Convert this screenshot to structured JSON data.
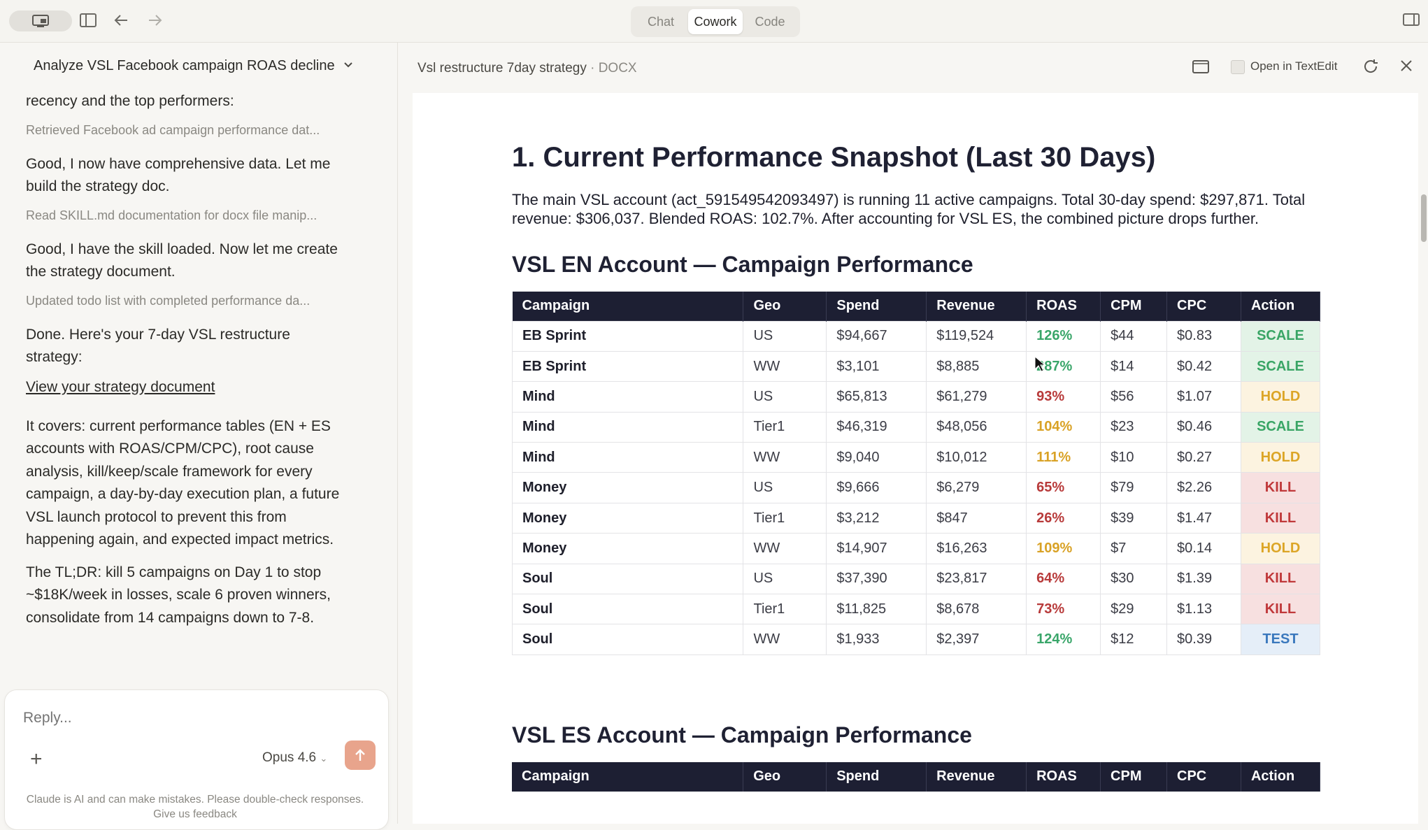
{
  "topbar": {
    "modes": [
      "Chat",
      "Cowork",
      "Code"
    ],
    "active_mode": "Cowork"
  },
  "conversation": {
    "title": "Analyze VSL Facebook campaign ROAS decline",
    "items": [
      {
        "kind": "msg",
        "text": "recency and the top performers:"
      },
      {
        "kind": "tool",
        "text": "Retrieved Facebook ad campaign performance dat..."
      },
      {
        "kind": "msg",
        "text": "Good, I now have comprehensive data. Let me build the strategy doc."
      },
      {
        "kind": "tool",
        "text": "Read SKILL.md documentation for docx file manip..."
      },
      {
        "kind": "msg",
        "text": "Good, I have the skill loaded. Now let me create the strategy document."
      },
      {
        "kind": "tool",
        "text": "Updated todo list with completed performance da..."
      },
      {
        "kind": "msg",
        "text": "Done. Here's your 7-day VSL restructure strategy:"
      },
      {
        "kind": "link",
        "text": "View your strategy document"
      },
      {
        "kind": "msg",
        "text": "It covers: current performance tables (EN + ES accounts with ROAS/CPM/CPC), root cause analysis, kill/keep/scale framework for every campaign, a day-by-day execution plan, a future VSL launch protocol to prevent this from happening again, and expected impact metrics."
      },
      {
        "kind": "msg",
        "text": "The TL;DR: kill 5 campaigns on Day 1 to stop ~$18K/week in losses, scale 6 proven winners, consolidate from 14 campaigns down to 7-8."
      }
    ],
    "reply_placeholder": "Reply...",
    "model": "Opus 4.6",
    "disclaimer_line1": "Claude is AI and can make mistakes. Please double-check responses.",
    "disclaimer_line2": "Give us feedback"
  },
  "document": {
    "filename": "Vsl restructure 7day strategy",
    "ext": "· DOCX",
    "open_in": "Open in TextEdit",
    "heading": "1. Current Performance Snapshot (Last 30 Days)",
    "intro": "The main VSL account (act_591549542093497) is running 11 active campaigns. Total 30-day spend: $297,871. Total revenue: $306,037. Blended ROAS: 102.7%. After accounting for VSL ES, the combined picture drops further.",
    "section_en": "VSL EN Account — Campaign Performance",
    "section_es": "VSL ES Account — Campaign Performance",
    "columns": [
      "Campaign",
      "Geo",
      "Spend",
      "Revenue",
      "ROAS",
      "CPM",
      "CPC",
      "Action"
    ],
    "rows": [
      {
        "campaign": "EB Sprint",
        "geo": "US",
        "spend": "$94,667",
        "revenue": "$119,524",
        "roas": "126%",
        "roas_color": "green",
        "cpm": "$44",
        "cpc": "$0.83",
        "action": "SCALE"
      },
      {
        "campaign": "EB Sprint",
        "geo": "WW",
        "spend": "$3,101",
        "revenue": "$8,885",
        "roas": "287%",
        "roas_color": "green",
        "cpm": "$14",
        "cpc": "$0.42",
        "action": "SCALE"
      },
      {
        "campaign": "Mind",
        "geo": "US",
        "spend": "$65,813",
        "revenue": "$61,279",
        "roas": "93%",
        "roas_color": "red",
        "cpm": "$56",
        "cpc": "$1.07",
        "action": "HOLD"
      },
      {
        "campaign": "Mind",
        "geo": "Tier1",
        "spend": "$46,319",
        "revenue": "$48,056",
        "roas": "104%",
        "roas_color": "amber",
        "cpm": "$23",
        "cpc": "$0.46",
        "action": "SCALE"
      },
      {
        "campaign": "Mind",
        "geo": "WW",
        "spend": "$9,040",
        "revenue": "$10,012",
        "roas": "111%",
        "roas_color": "amber",
        "cpm": "$10",
        "cpc": "$0.27",
        "action": "HOLD"
      },
      {
        "campaign": "Money",
        "geo": "US",
        "spend": "$9,666",
        "revenue": "$6,279",
        "roas": "65%",
        "roas_color": "red",
        "cpm": "$79",
        "cpc": "$2.26",
        "action": "KILL"
      },
      {
        "campaign": "Money",
        "geo": "Tier1",
        "spend": "$3,212",
        "revenue": "$847",
        "roas": "26%",
        "roas_color": "red",
        "cpm": "$39",
        "cpc": "$1.47",
        "action": "KILL"
      },
      {
        "campaign": "Money",
        "geo": "WW",
        "spend": "$14,907",
        "revenue": "$16,263",
        "roas": "109%",
        "roas_color": "amber",
        "cpm": "$7",
        "cpc": "$0.14",
        "action": "HOLD"
      },
      {
        "campaign": "Soul",
        "geo": "US",
        "spend": "$37,390",
        "revenue": "$23,817",
        "roas": "64%",
        "roas_color": "red",
        "cpm": "$30",
        "cpc": "$1.39",
        "action": "KILL"
      },
      {
        "campaign": "Soul",
        "geo": "Tier1",
        "spend": "$11,825",
        "revenue": "$8,678",
        "roas": "73%",
        "roas_color": "red",
        "cpm": "$29",
        "cpc": "$1.13",
        "action": "KILL"
      },
      {
        "campaign": "Soul",
        "geo": "WW",
        "spend": "$1,933",
        "revenue": "$2,397",
        "roas": "124%",
        "roas_color": "green",
        "cpm": "$12",
        "cpc": "$0.39",
        "action": "TEST"
      }
    ]
  },
  "icons": [
    "monitor-icon",
    "sidebar-toggle-icon",
    "back-arrow-icon",
    "forward-arrow-icon",
    "panel-right-icon",
    "chevron-down-icon",
    "chevron-right-icon",
    "plus-icon",
    "send-arrow-icon",
    "preview-icon",
    "textedit-icon",
    "refresh-icon",
    "close-icon"
  ]
}
